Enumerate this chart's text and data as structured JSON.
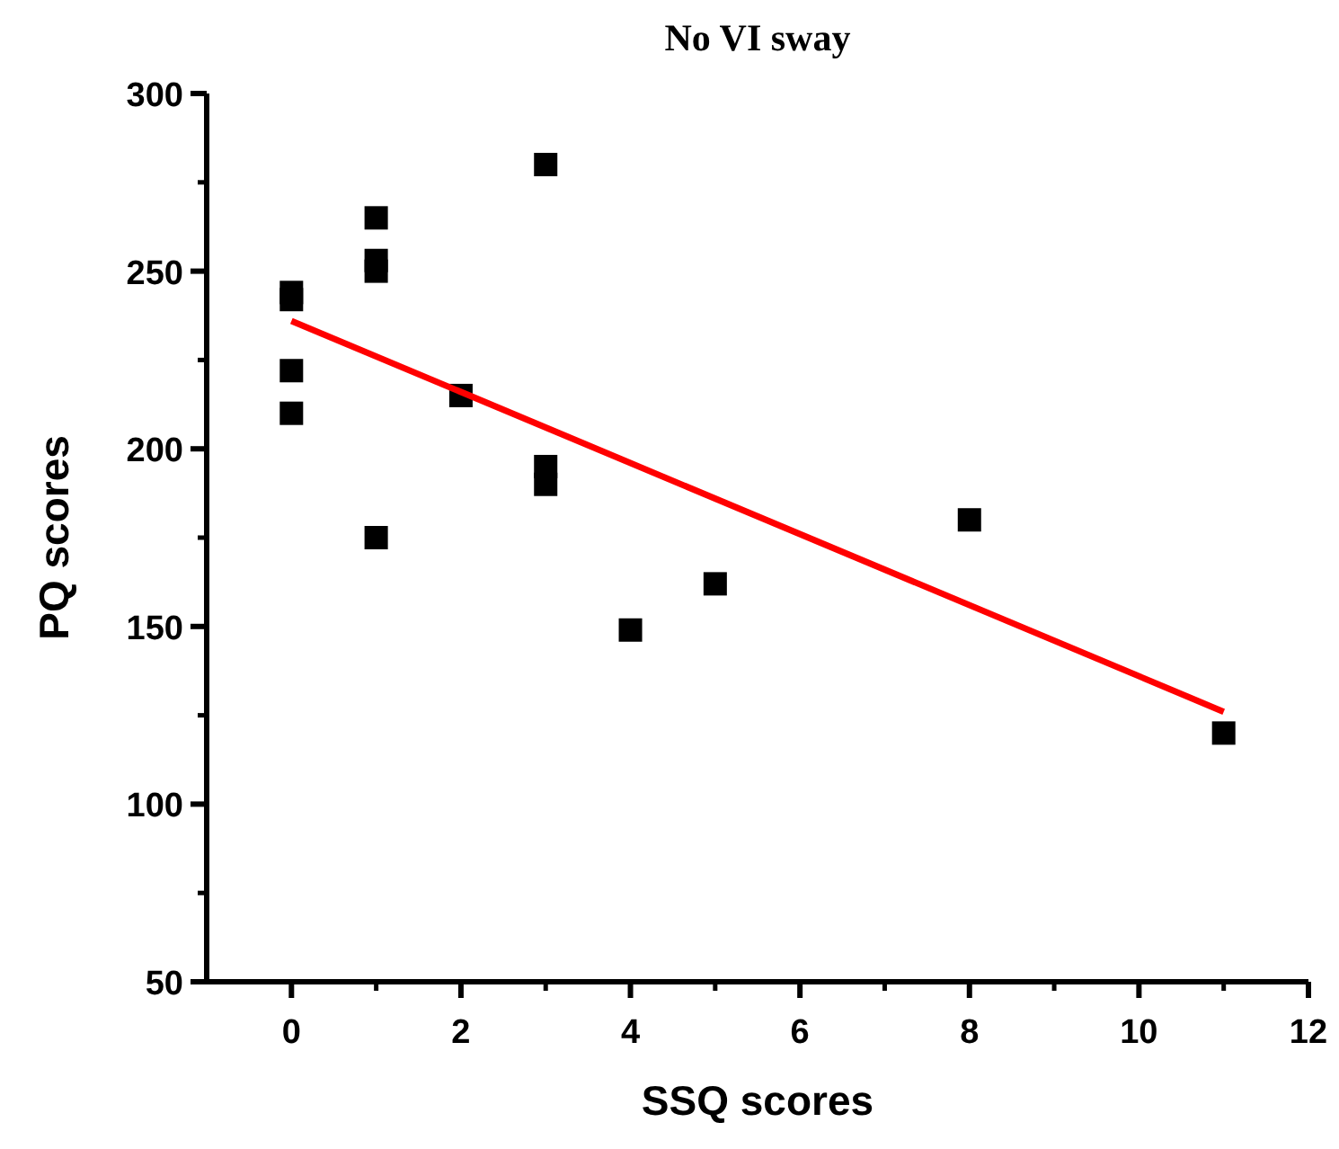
{
  "chart_data": {
    "type": "scatter",
    "title": "No VI sway",
    "xlabel": "SSQ scores",
    "ylabel": "PQ scores",
    "xlim": [
      -1,
      12
    ],
    "xticks": [
      0,
      2,
      4,
      6,
      8,
      10,
      12
    ],
    "ylim": [
      50,
      300
    ],
    "yticks": [
      50,
      100,
      150,
      200,
      250,
      300
    ],
    "grid": false,
    "marker": "square",
    "series": [
      {
        "color": "#000000",
        "x": [
          0,
          0,
          0,
          0,
          1,
          1,
          1,
          1,
          2,
          3,
          3,
          3,
          4,
          5,
          8,
          11
        ],
        "values": [
          244,
          242,
          222,
          210,
          265,
          253,
          250,
          175,
          215,
          280,
          195,
          190,
          149,
          162,
          180,
          120
        ]
      },
      {
        "type": "line",
        "color": "#ff0000",
        "marker": "none",
        "line_style": "solid",
        "x": [
          0,
          11
        ],
        "values": [
          236,
          126
        ]
      }
    ]
  }
}
